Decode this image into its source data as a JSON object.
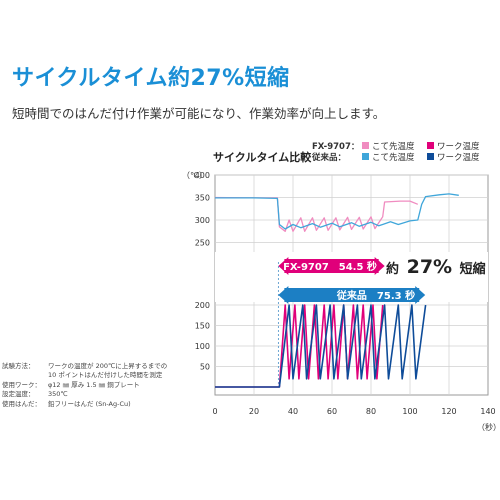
{
  "headline": "サイクルタイム約27%短縮",
  "subline": "短時間でのはんだ付け作業が可能になり、作業効率が向上します。",
  "legend": {
    "rows": [
      {
        "model": "FX-9707：",
        "items": [
          {
            "label": "こて先温度",
            "color": "#f08cc0"
          },
          {
            "label": "ワーク温度",
            "color": "#e0007a"
          }
        ]
      },
      {
        "model": "従来品：",
        "items": [
          {
            "label": "こて先温度",
            "color": "#3fa6da"
          },
          {
            "label": "ワーク温度",
            "color": "#0e4c99"
          }
        ]
      }
    ]
  },
  "callouts": {
    "new": "FX-9707　54.5 秒",
    "old": "従来品　75.3 秒",
    "reduction_prefix": "約",
    "reduction_value": "27%",
    "reduction_suffix": "短縮"
  },
  "notes": [
    {
      "key": "試験方法：",
      "lines": [
        "ワークの温度が 200℃に上昇するまでの",
        "10 ポイントはんだ付けした時間を測定"
      ]
    },
    {
      "key": "使用ワーク：",
      "lines": [
        "φ12 ㎜ 厚み 1.5 ㎜ 銅プレート"
      ]
    },
    {
      "key": "設定温度：",
      "lines": [
        "350℃"
      ]
    },
    {
      "key": "使用はんだ：",
      "lines": [
        "鉛フリーはんだ (Sn-Ag-Cu)"
      ]
    }
  ],
  "chart_data": {
    "type": "line",
    "title": "サイクルタイム比較",
    "ylabel": "（℃）",
    "xlabel": "（秒）",
    "xlim": [
      0,
      140
    ],
    "x_ticks": [
      "0",
      "20",
      "40",
      "60",
      "80",
      "100",
      "120",
      "140"
    ],
    "upper_y_ticks": [
      "400",
      "350",
      "300",
      "250"
    ],
    "lower_y_ticks": [
      "200",
      "150",
      "100",
      "50"
    ],
    "ranges": {
      "new_seconds": 54.5,
      "old_seconds": 75.3,
      "start_seconds": 32.5
    },
    "series": [
      {
        "name": "FX-9707 こて先温度",
        "color": "#f08cc0",
        "points": [
          [
            0,
            350
          ],
          [
            20,
            349
          ],
          [
            32,
            349
          ],
          [
            33,
            285
          ],
          [
            36,
            275
          ],
          [
            38,
            300
          ],
          [
            40,
            275
          ],
          [
            44,
            305
          ],
          [
            46,
            275
          ],
          [
            50,
            305
          ],
          [
            52,
            277
          ],
          [
            56,
            305
          ],
          [
            58,
            277
          ],
          [
            62,
            305
          ],
          [
            64,
            278
          ],
          [
            68,
            306
          ],
          [
            70,
            279
          ],
          [
            74,
            306
          ],
          [
            76,
            280
          ],
          [
            80,
            307
          ],
          [
            82,
            281
          ],
          [
            86,
            307
          ],
          [
            87,
            340
          ],
          [
            95,
            342
          ],
          [
            100,
            342
          ],
          [
            104,
            335
          ]
        ]
      },
      {
        "name": "FX-9707 ワーク温度",
        "color": "#e0007a",
        "points": [
          [
            0,
            0
          ],
          [
            32,
            0
          ],
          [
            33,
            0
          ],
          [
            36,
            200
          ],
          [
            38,
            20
          ],
          [
            41,
            200
          ],
          [
            43,
            20
          ],
          [
            46,
            200
          ],
          [
            48,
            20
          ],
          [
            51,
            200
          ],
          [
            53,
            20
          ],
          [
            56,
            200
          ],
          [
            58,
            20
          ],
          [
            61,
            200
          ],
          [
            63,
            20
          ],
          [
            66,
            200
          ],
          [
            68,
            20
          ],
          [
            71,
            200
          ],
          [
            73,
            20
          ],
          [
            76,
            200
          ],
          [
            78,
            20
          ],
          [
            81,
            200
          ],
          [
            83,
            20
          ],
          [
            86,
            200
          ]
        ]
      },
      {
        "name": "従来品 こて先温度",
        "color": "#3fa6da",
        "points": [
          [
            0,
            349
          ],
          [
            20,
            349
          ],
          [
            32,
            348
          ],
          [
            33,
            290
          ],
          [
            36,
            280
          ],
          [
            40,
            290
          ],
          [
            44,
            283
          ],
          [
            50,
            292
          ],
          [
            54,
            284
          ],
          [
            60,
            293
          ],
          [
            64,
            285
          ],
          [
            70,
            294
          ],
          [
            74,
            286
          ],
          [
            80,
            295
          ],
          [
            84,
            287
          ],
          [
            90,
            296
          ],
          [
            94,
            290
          ],
          [
            100,
            298
          ],
          [
            104,
            300
          ],
          [
            106,
            335
          ],
          [
            108,
            352
          ],
          [
            115,
            356
          ],
          [
            120,
            358
          ],
          [
            125,
            355
          ]
        ]
      },
      {
        "name": "従来品 ワーク温度",
        "color": "#0e4c99",
        "points": [
          [
            0,
            0
          ],
          [
            32,
            0
          ],
          [
            33,
            0
          ],
          [
            38,
            200
          ],
          [
            40,
            20
          ],
          [
            45,
            200
          ],
          [
            47,
            20
          ],
          [
            52,
            200
          ],
          [
            54,
            20
          ],
          [
            59,
            200
          ],
          [
            61,
            20
          ],
          [
            66,
            200
          ],
          [
            68,
            20
          ],
          [
            73,
            200
          ],
          [
            75,
            20
          ],
          [
            80,
            200
          ],
          [
            82,
            20
          ],
          [
            87,
            200
          ],
          [
            89,
            20
          ],
          [
            94,
            200
          ],
          [
            96,
            20
          ],
          [
            101,
            200
          ],
          [
            103,
            20
          ],
          [
            108,
            200
          ]
        ]
      }
    ]
  }
}
